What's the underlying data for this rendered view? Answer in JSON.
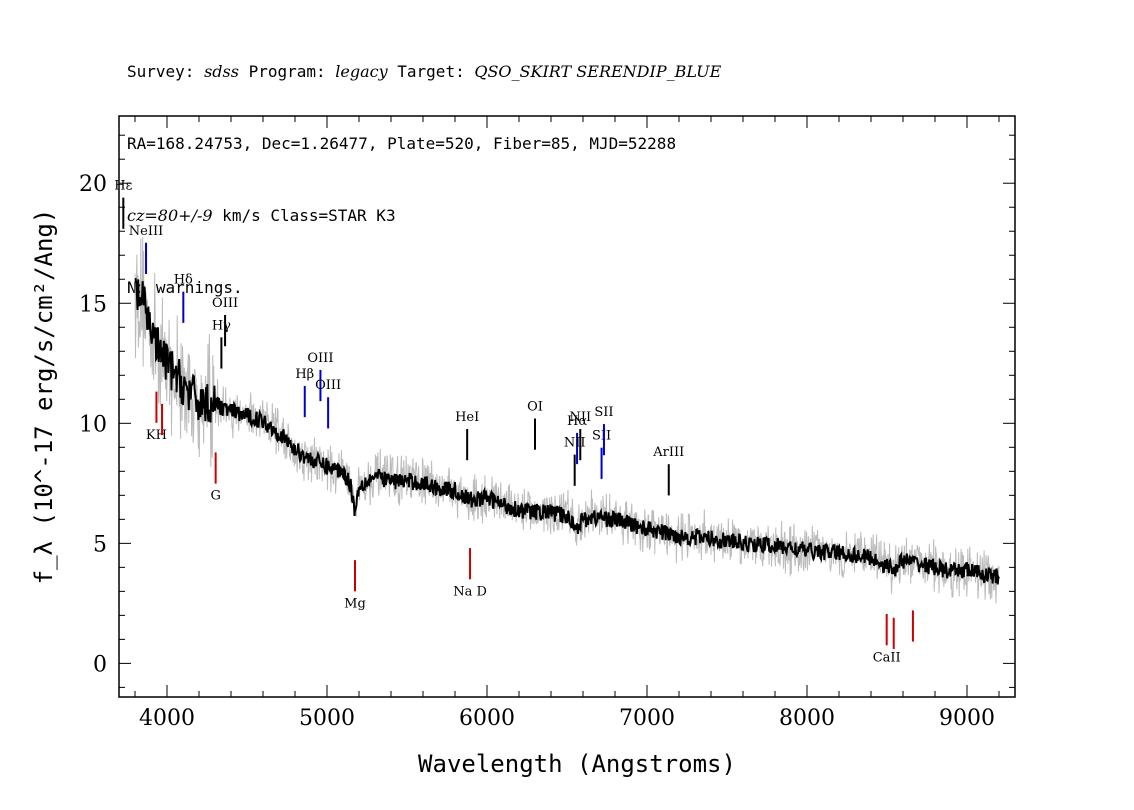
{
  "header": {
    "line1_prefix": "Survey: ",
    "survey": "sdss",
    "line1_mid1": " Program: ",
    "program": "legacy",
    "line1_mid2": " Target: ",
    "target": "QSO_SKIRT SERENDIP_BLUE",
    "line2": "RA=168.24753, Dec=1.26477, Plate=520, Fiber=85, MJD=52288",
    "redshift": "cz=80+/-9",
    "line3_rest": " km/s Class=STAR K3",
    "line4": "No warnings."
  },
  "chart_data": {
    "type": "line",
    "xlabel": "Wavelength (Angstroms)",
    "ylabel": "f_λ (10^-17 erg/s/cm²/Ang)",
    "xlim": [
      3700,
      9300
    ],
    "ylim": [
      -1.4,
      22.8
    ],
    "x_ticks": [
      4000,
      5000,
      6000,
      7000,
      8000,
      9000
    ],
    "y_ticks": [
      0,
      5,
      10,
      15,
      20
    ],
    "colors": {
      "flux": "#000000",
      "noise": "#bbbbbb",
      "emission": "#0000cc",
      "absorption": "#cc0000",
      "other": "#000000"
    },
    "series": [
      {
        "name": "flux",
        "x": [
          3800,
          3850,
          3900,
          3950,
          4000,
          4050,
          4100,
          4150,
          4200,
          4300,
          4400,
          4500,
          4600,
          4700,
          4800,
          4900,
          5000,
          5100,
          5150,
          5175,
          5200,
          5300,
          5400,
          5500,
          5600,
          5700,
          5800,
          5890,
          6000,
          6100,
          6200,
          6300,
          6400,
          6500,
          6563,
          6600,
          6700,
          6800,
          6900,
          7000,
          7200,
          7400,
          7600,
          7800,
          8000,
          8200,
          8400,
          8542,
          8600,
          8800,
          8900,
          9000,
          9100,
          9200
        ],
        "y": [
          15.5,
          15.0,
          14.0,
          13.0,
          12.5,
          12.0,
          11.6,
          11.2,
          10.9,
          10.8,
          10.5,
          10.3,
          10.1,
          9.6,
          8.9,
          8.5,
          8.2,
          8.0,
          7.4,
          6.3,
          7.4,
          7.8,
          7.6,
          7.6,
          7.5,
          7.3,
          7.2,
          6.8,
          6.9,
          6.6,
          6.4,
          6.3,
          6.3,
          6.1,
          5.7,
          6.0,
          6.1,
          6.0,
          5.8,
          5.6,
          5.3,
          5.2,
          5.0,
          4.9,
          4.7,
          4.6,
          4.4,
          3.9,
          4.3,
          4.0,
          3.8,
          3.9,
          3.7,
          3.6
        ]
      }
    ],
    "emission_lines": [
      {
        "label": "NeIII",
        "wavelength": 3869
      },
      {
        "label": "Hδ",
        "wavelength": 4102
      },
      {
        "label": "Hβ",
        "wavelength": 4861
      },
      {
        "label": "OIII",
        "wavelength": 4959
      },
      {
        "label": "OIII",
        "wavelength": 5007
      },
      {
        "label": "Hα",
        "wavelength": 6563
      },
      {
        "label": "SII",
        "wavelength": 6716
      },
      {
        "label": "SII",
        "wavelength": 6731
      }
    ],
    "other_lines": [
      {
        "label": "Hε",
        "wavelength": 3727
      },
      {
        "label": "Hγ",
        "wavelength": 4340
      },
      {
        "label": "OIII",
        "wavelength": 4363
      },
      {
        "label": "HeI",
        "wavelength": 5876
      },
      {
        "label": "OI",
        "wavelength": 6300
      },
      {
        "label": "NII",
        "wavelength": 6548
      },
      {
        "label": "NII",
        "wavelength": 6583
      },
      {
        "label": "ArIII",
        "wavelength": 7136
      }
    ],
    "absorption_lines": [
      {
        "label": "KH",
        "wavelength": 3934
      },
      {
        "label": "",
        "wavelength": 3969
      },
      {
        "label": "G",
        "wavelength": 4304
      },
      {
        "label": "Mg",
        "wavelength": 5175
      },
      {
        "label": "Na D",
        "wavelength": 5894
      },
      {
        "label": "CaII",
        "wavelength": 8498
      },
      {
        "label": "",
        "wavelength": 8542
      },
      {
        "label": "",
        "wavelength": 8662
      }
    ]
  }
}
